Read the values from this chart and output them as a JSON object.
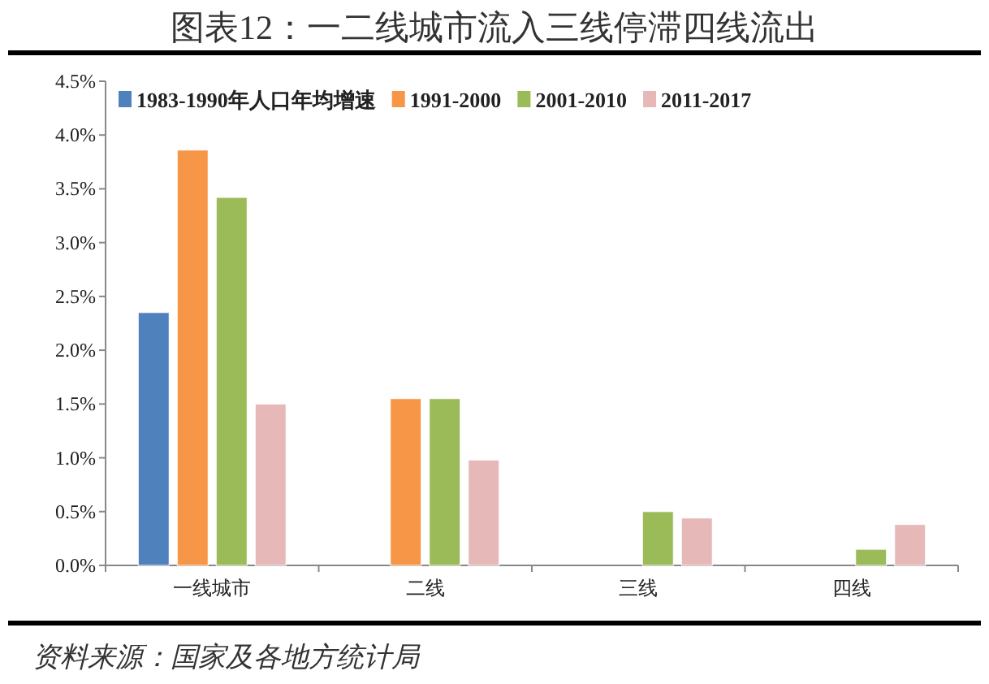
{
  "chart_data": {
    "type": "bar",
    "title": "图表12：一二线城市流入三线停滞四线流出",
    "categories": [
      "一线城市",
      "二线",
      "三线",
      "四线"
    ],
    "series": [
      {
        "name": "1983-1990年人口年均增速",
        "color": "#4f81bd",
        "values": [
          2.35,
          null,
          null,
          null
        ]
      },
      {
        "name": "1991-2000",
        "color": "#f79646",
        "values": [
          3.86,
          1.55,
          null,
          null
        ]
      },
      {
        "name": "2001-2010",
        "color": "#9bbb59",
        "values": [
          3.42,
          1.55,
          0.5,
          0.15
        ]
      },
      {
        "name": "2011-2017",
        "color": "#e6b9b8",
        "values": [
          1.5,
          0.98,
          0.44,
          0.38
        ]
      }
    ],
    "ylim": [
      0,
      4.5
    ],
    "yticks": [
      {
        "value": 0,
        "label": "0.0%"
      },
      {
        "value": 0.5,
        "label": "0.5%"
      },
      {
        "value": 1,
        "label": "1.0%"
      },
      {
        "value": 1.5,
        "label": "1.5%"
      },
      {
        "value": 2,
        "label": "2.0%"
      },
      {
        "value": 2.5,
        "label": "2.5%"
      },
      {
        "value": 3,
        "label": "3.0%"
      },
      {
        "value": 3.5,
        "label": "3.5%"
      },
      {
        "value": 4,
        "label": "4.0%"
      },
      {
        "value": 4.5,
        "label": "4.5%"
      }
    ],
    "legend": "top left",
    "annotations": [
      "资料来源：国家及各地方统计局"
    ]
  }
}
